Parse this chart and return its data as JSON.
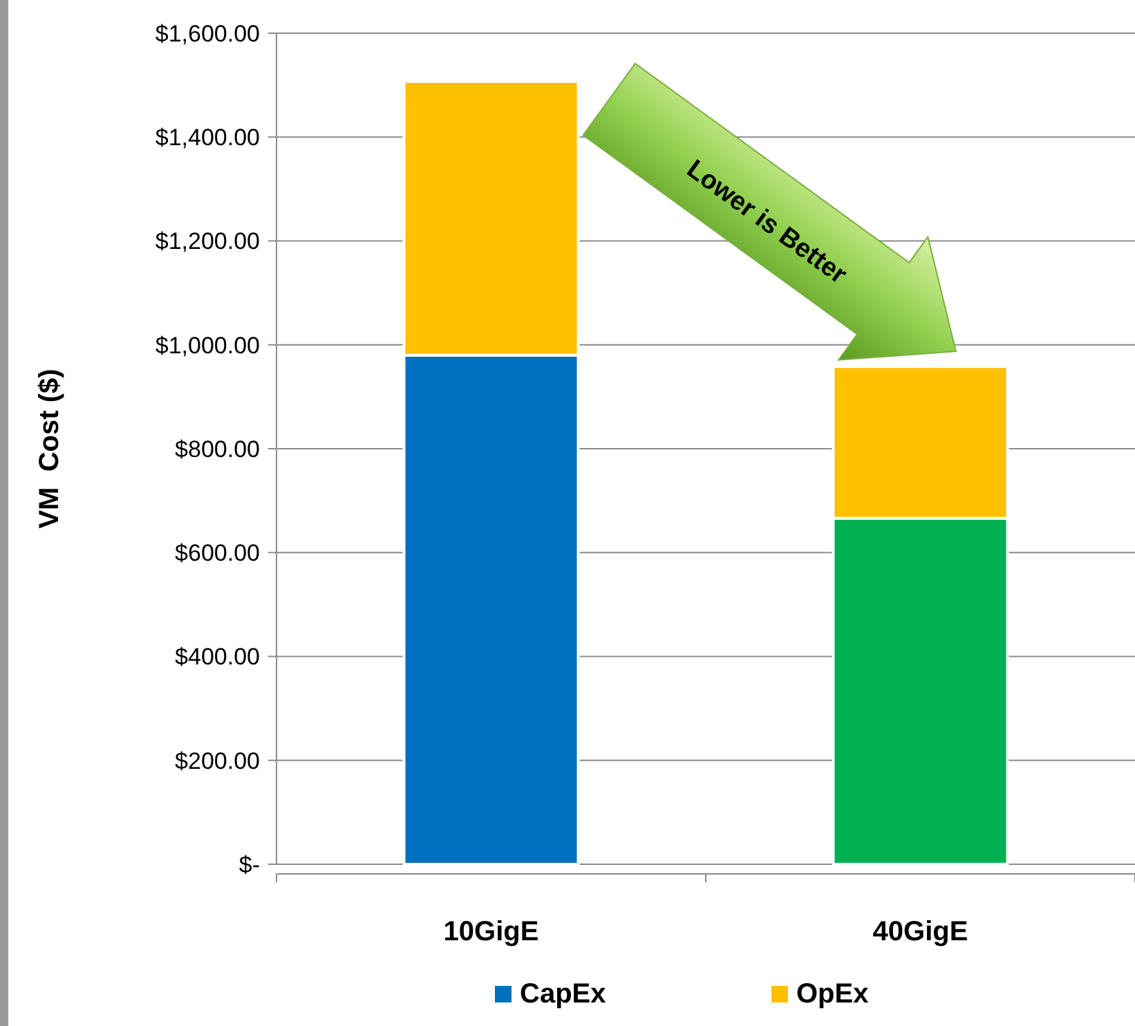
{
  "chart_data": {
    "type": "bar",
    "stacked": true,
    "ylabel": "VM  Cost ($)",
    "categories": [
      "10GigE",
      "40GigE"
    ],
    "series": [
      {
        "name": "CapEx",
        "color": "#0070c0",
        "colors": [
          "#0070c0",
          "#00b050"
        ],
        "values": [
          980,
          666
        ]
      },
      {
        "name": "OpEx",
        "color": "#ffc000",
        "values": [
          527,
          292
        ]
      }
    ],
    "ylim": [
      0,
      1600
    ],
    "yticks": [
      {
        "value": 0,
        "label": "$-"
      },
      {
        "value": 200,
        "label": "$200.00"
      },
      {
        "value": 400,
        "label": "$400.00"
      },
      {
        "value": 600,
        "label": "$600.00"
      },
      {
        "value": 800,
        "label": "$800.00"
      },
      {
        "value": 1000,
        "label": "$1,000.00"
      },
      {
        "value": 1200,
        "label": "$1,200.00"
      },
      {
        "value": 1400,
        "label": "$1,400.00"
      },
      {
        "value": 1600,
        "label": "$1,600.00"
      }
    ],
    "grid": "y",
    "legend": "bottom",
    "annotations": [
      "Lower is Better"
    ]
  }
}
